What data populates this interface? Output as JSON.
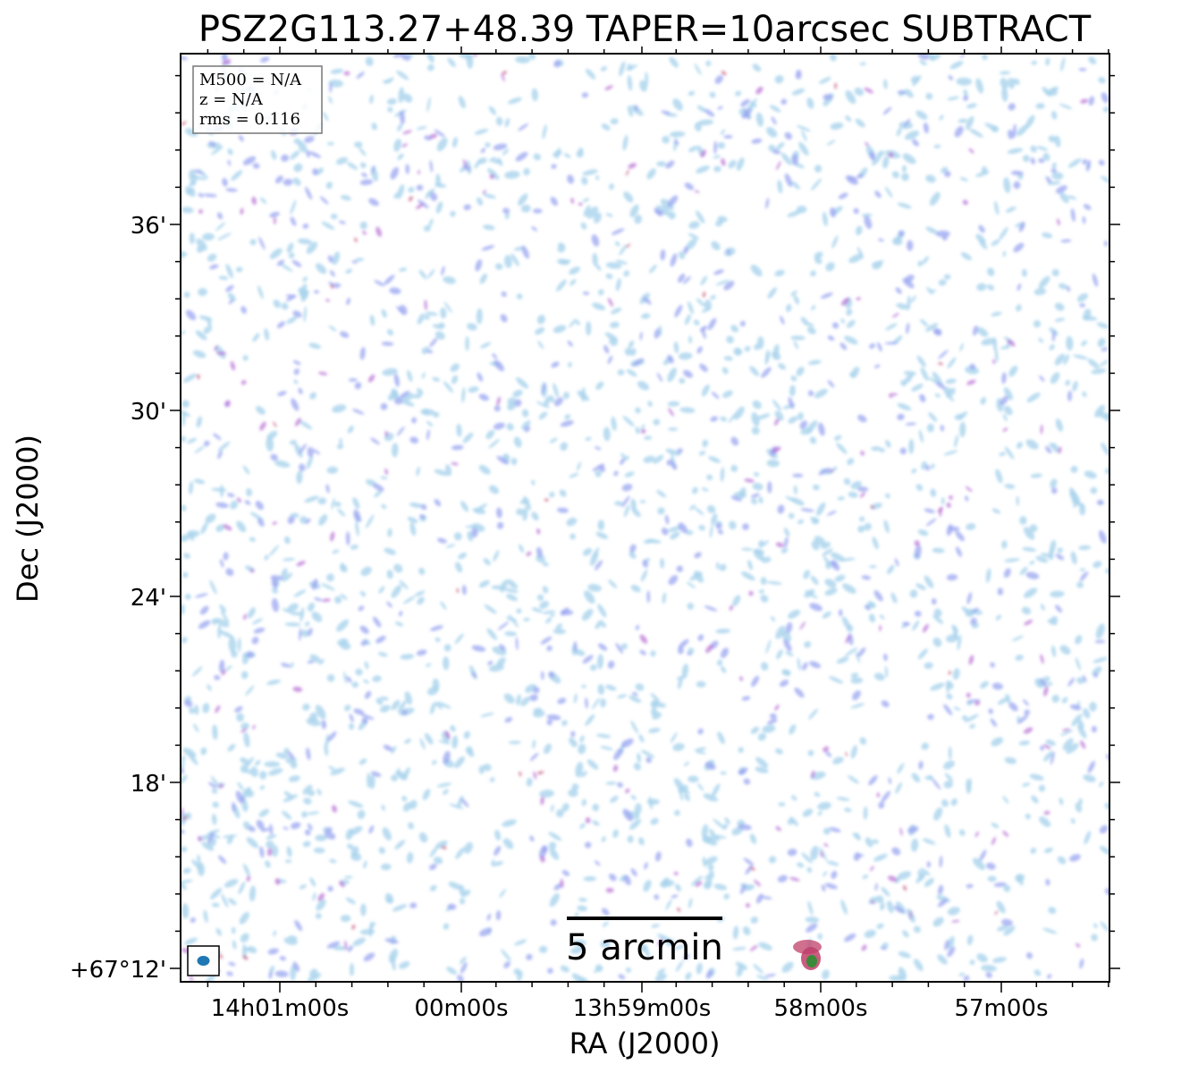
{
  "figure": {
    "title": "PSZ2G113.27+48.39 TAPER=10arcsec SUBTRACT",
    "xlabel": "RA (J2000)",
    "ylabel": "Dec (J2000)"
  },
  "info_box": {
    "m500": "M500 = N/A",
    "z": "z = N/A",
    "rms": "rms = 0.116"
  },
  "x_ticks": [
    "14h01m00s",
    "00m00s",
    "13h59m00s",
    "58m00s",
    "57m00s"
  ],
  "y_ticks": [
    "36'",
    "30'",
    "24'",
    "18'",
    "+67°12'"
  ],
  "scale_bar": {
    "label": "5 arcmin"
  },
  "colors": {
    "noise_light": "#a9d3ec",
    "noise_mid": "#9aa6f0",
    "noise_peak": "#b86fd4",
    "noise_hot": "#c0406a",
    "source_core": "#3a8a3a",
    "beam": "#1f77b4",
    "frame": "#000000"
  }
}
